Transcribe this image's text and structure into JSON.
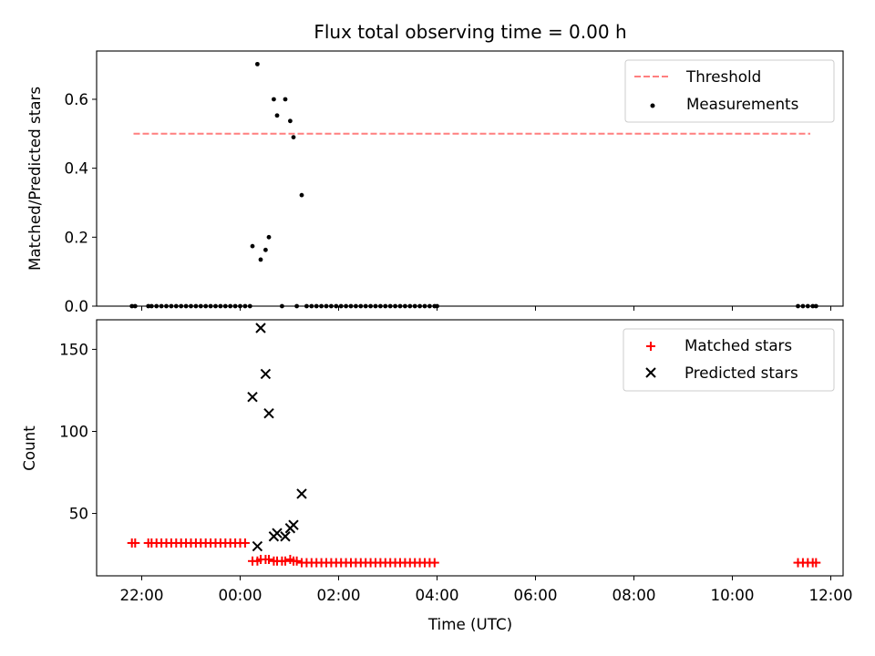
{
  "chart_data": [
    {
      "type": "scatter",
      "title": "Flux total observing time = 0.00 h",
      "xlabel": "",
      "ylabel": "Matched/Predicted stars",
      "ylim": [
        0,
        0.74
      ],
      "yticks": [
        0.0,
        0.2,
        0.4,
        0.6
      ],
      "ytick_labels": [
        "0.0",
        "0.2",
        "0.4",
        "0.6"
      ],
      "xlim": [
        "21:05",
        "12:15"
      ],
      "legend": "top-right",
      "threshold": {
        "name": "Threshold",
        "style": "dashed",
        "color": "#ff7f7f",
        "value": 0.5,
        "x": [
          "21:50",
          "11:35"
        ]
      },
      "series": [
        {
          "name": "Measurements",
          "marker": "dot",
          "color": "#000000",
          "points": [
            [
              "21:48",
              0
            ],
            [
              "21:52",
              0
            ],
            [
              "22:08",
              0
            ],
            [
              "22:12",
              0
            ],
            [
              "22:18",
              0
            ],
            [
              "22:24",
              0
            ],
            [
              "22:30",
              0
            ],
            [
              "22:36",
              0
            ],
            [
              "22:42",
              0
            ],
            [
              "22:48",
              0
            ],
            [
              "22:54",
              0
            ],
            [
              "23:00",
              0
            ],
            [
              "23:06",
              0
            ],
            [
              "23:12",
              0
            ],
            [
              "23:18",
              0
            ],
            [
              "23:24",
              0
            ],
            [
              "23:30",
              0
            ],
            [
              "23:36",
              0
            ],
            [
              "23:42",
              0
            ],
            [
              "23:48",
              0
            ],
            [
              "23:54",
              0
            ],
            [
              "00:00",
              0
            ],
            [
              "00:06",
              0
            ],
            [
              "00:12",
              0
            ],
            [
              "00:15",
              0.174
            ],
            [
              "00:21",
              0.702
            ],
            [
              "00:25",
              0.135
            ],
            [
              "00:31",
              0.163
            ],
            [
              "00:35",
              0.2
            ],
            [
              "00:41",
              0.6
            ],
            [
              "00:45",
              0.553
            ],
            [
              "00:51",
              0
            ],
            [
              "00:55",
              0.6
            ],
            [
              "01:01",
              0.537
            ],
            [
              "01:05",
              0.49
            ],
            [
              "01:09",
              0
            ],
            [
              "01:15",
              0.322
            ],
            [
              "01:21",
              0
            ],
            [
              "01:27",
              0
            ],
            [
              "01:33",
              0
            ],
            [
              "01:39",
              0
            ],
            [
              "01:45",
              0
            ],
            [
              "01:51",
              0
            ],
            [
              "01:57",
              0
            ],
            [
              "02:03",
              0
            ],
            [
              "02:09",
              0
            ],
            [
              "02:15",
              0
            ],
            [
              "02:21",
              0
            ],
            [
              "02:27",
              0
            ],
            [
              "02:33",
              0
            ],
            [
              "02:39",
              0
            ],
            [
              "02:45",
              0
            ],
            [
              "02:51",
              0
            ],
            [
              "02:57",
              0
            ],
            [
              "03:03",
              0
            ],
            [
              "03:09",
              0
            ],
            [
              "03:15",
              0
            ],
            [
              "03:21",
              0
            ],
            [
              "03:27",
              0
            ],
            [
              "03:33",
              0
            ],
            [
              "03:39",
              0
            ],
            [
              "03:45",
              0
            ],
            [
              "03:51",
              0
            ],
            [
              "03:57",
              0
            ],
            [
              "04:00",
              0
            ],
            [
              "11:20",
              0
            ],
            [
              "11:26",
              0
            ],
            [
              "11:32",
              0
            ],
            [
              "11:38",
              0
            ],
            [
              "11:42",
              0
            ]
          ]
        }
      ]
    },
    {
      "type": "scatter",
      "title": "",
      "xlabel": "Time (UTC)",
      "ylabel": "Count",
      "ylim": [
        12,
        168
      ],
      "yticks": [
        50,
        100,
        150
      ],
      "ytick_labels": [
        "50",
        "100",
        "150"
      ],
      "xlim": [
        "21:05",
        "12:15"
      ],
      "xticks": [
        "22:00",
        "00:00",
        "02:00",
        "04:00",
        "06:00",
        "08:00",
        "10:00",
        "12:00"
      ],
      "xtick_labels": [
        "22:00",
        "00:00",
        "02:00",
        "04:00",
        "06:00",
        "08:00",
        "10:00",
        "12:00"
      ],
      "legend": "top-right",
      "series": [
        {
          "name": "Matched stars",
          "marker": "plus",
          "color": "#ff0000",
          "points": [
            [
              "21:48",
              32
            ],
            [
              "21:52",
              32
            ],
            [
              "22:08",
              32
            ],
            [
              "22:12",
              32
            ],
            [
              "22:18",
              32
            ],
            [
              "22:24",
              32
            ],
            [
              "22:30",
              32
            ],
            [
              "22:36",
              32
            ],
            [
              "22:42",
              32
            ],
            [
              "22:48",
              32
            ],
            [
              "22:54",
              32
            ],
            [
              "23:00",
              32
            ],
            [
              "23:06",
              32
            ],
            [
              "23:12",
              32
            ],
            [
              "23:18",
              32
            ],
            [
              "23:24",
              32
            ],
            [
              "23:30",
              32
            ],
            [
              "23:36",
              32
            ],
            [
              "23:42",
              32
            ],
            [
              "23:48",
              32
            ],
            [
              "23:54",
              32
            ],
            [
              "00:00",
              32
            ],
            [
              "00:06",
              32
            ],
            [
              "00:15",
              21
            ],
            [
              "00:21",
              21
            ],
            [
              "00:25",
              22
            ],
            [
              "00:31",
              22
            ],
            [
              "00:35",
              22
            ],
            [
              "00:41",
              21
            ],
            [
              "00:45",
              21
            ],
            [
              "00:51",
              21
            ],
            [
              "00:55",
              21
            ],
            [
              "01:01",
              22
            ],
            [
              "01:05",
              21
            ],
            [
              "01:09",
              21
            ],
            [
              "01:15",
              20
            ],
            [
              "01:21",
              20
            ],
            [
              "01:27",
              20
            ],
            [
              "01:33",
              20
            ],
            [
              "01:39",
              20
            ],
            [
              "01:45",
              20
            ],
            [
              "01:51",
              20
            ],
            [
              "01:57",
              20
            ],
            [
              "02:03",
              20
            ],
            [
              "02:09",
              20
            ],
            [
              "02:15",
              20
            ],
            [
              "02:21",
              20
            ],
            [
              "02:27",
              20
            ],
            [
              "02:33",
              20
            ],
            [
              "02:39",
              20
            ],
            [
              "02:45",
              20
            ],
            [
              "02:51",
              20
            ],
            [
              "02:57",
              20
            ],
            [
              "03:03",
              20
            ],
            [
              "03:09",
              20
            ],
            [
              "03:15",
              20
            ],
            [
              "03:21",
              20
            ],
            [
              "03:27",
              20
            ],
            [
              "03:33",
              20
            ],
            [
              "03:39",
              20
            ],
            [
              "03:45",
              20
            ],
            [
              "03:51",
              20
            ],
            [
              "03:57",
              20
            ],
            [
              "11:20",
              20
            ],
            [
              "11:26",
              20
            ],
            [
              "11:32",
              20
            ],
            [
              "11:38",
              20
            ],
            [
              "11:42",
              20
            ]
          ]
        },
        {
          "name": "Predicted stars",
          "marker": "x",
          "color": "#000000",
          "points": [
            [
              "00:15",
              121
            ],
            [
              "00:21",
              30
            ],
            [
              "00:25",
              163
            ],
            [
              "00:31",
              135
            ],
            [
              "00:35",
              111
            ],
            [
              "00:41",
              36
            ],
            [
              "00:45",
              38
            ],
            [
              "00:55",
              36
            ],
            [
              "01:01",
              41
            ],
            [
              "01:05",
              43
            ],
            [
              "01:15",
              62
            ]
          ]
        }
      ]
    }
  ]
}
